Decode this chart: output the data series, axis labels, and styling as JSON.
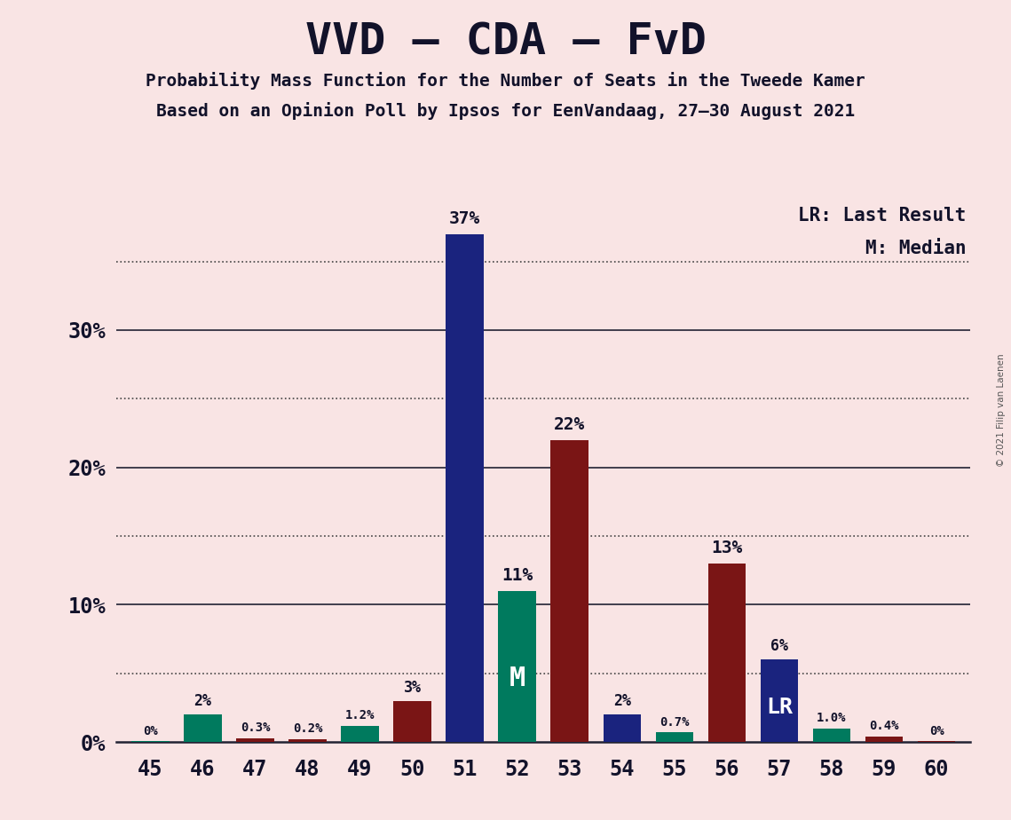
{
  "title": "VVD – CDA – FvD",
  "subtitle1": "Probability Mass Function for the Number of Seats in the Tweede Kamer",
  "subtitle2": "Based on an Opinion Poll by Ipsos for EenVandaag, 27–30 August 2021",
  "copyright": "© 2021 Filip van Laenen",
  "legend_lr": "LR: Last Result",
  "legend_m": "M: Median",
  "background_color": "#f9e4e4",
  "seats": [
    45,
    46,
    47,
    48,
    49,
    50,
    51,
    52,
    53,
    54,
    55,
    56,
    57,
    58,
    59,
    60
  ],
  "values": [
    0.05,
    2.0,
    0.3,
    0.2,
    1.2,
    3.0,
    37.0,
    11.0,
    22.0,
    2.0,
    0.7,
    13.0,
    6.0,
    1.0,
    0.4,
    0.05
  ],
  "labels": [
    "0%",
    "2%",
    "0.3%",
    "0.2%",
    "1.2%",
    "3%",
    "37%",
    "11%",
    "22%",
    "2%",
    "0.7%",
    "13%",
    "6%",
    "1.0%",
    "0.4%",
    "0%"
  ],
  "colors": [
    "#007a5e",
    "#007a5e",
    "#7a1515",
    "#7a1515",
    "#007a5e",
    "#7a1515",
    "#1a237e",
    "#007a5e",
    "#7a1515",
    "#1a237e",
    "#007a5e",
    "#7a1515",
    "#1a237e",
    "#007a5e",
    "#7a1515",
    "#7a1515"
  ],
  "median_seat": 52,
  "lr_seat": 57,
  "text_color": "#12122a",
  "grid_solid": [
    10,
    20,
    30
  ],
  "grid_dotted": [
    5,
    15,
    25,
    35
  ],
  "ytick_positions": [
    0,
    10,
    20,
    30
  ],
  "ytick_labels": [
    "0%",
    "10%",
    "20%",
    "30%"
  ],
  "ylim_max": 40,
  "bar_width": 0.72
}
